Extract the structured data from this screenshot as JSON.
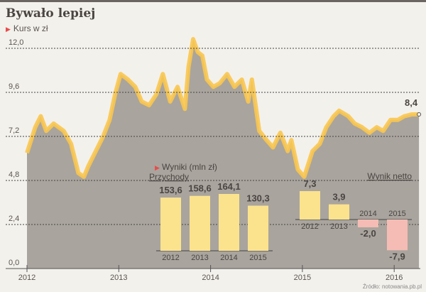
{
  "chart_data": {
    "type": "area",
    "title": "Bywało lepiej",
    "subtitle": "Kurs w zł",
    "ylabel": "Kurs w zł",
    "yticks": [
      "0,0",
      "2,4",
      "4,8",
      "7,2",
      "9,6",
      "12,0"
    ],
    "ytick_values": [
      0,
      2.4,
      4.8,
      7.2,
      9.6,
      12.0
    ],
    "xticks": [
      "2012",
      "2013",
      "2014",
      "2015",
      "2016"
    ],
    "xtick_values": [
      2012,
      2013,
      2014,
      2015,
      2016
    ],
    "ylim": [
      0,
      12.0
    ],
    "xlim": [
      2012,
      2016.3
    ],
    "grid": true,
    "last_value_label": "8,4",
    "colors": {
      "line": "#f9c74f",
      "area": "#a9a49d",
      "bar_pos": "#fbe38e",
      "bar_neg": "#f4bcb4",
      "accent": "#e84b4b"
    },
    "series": [
      {
        "name": "Kurs",
        "x": [
          2012.0,
          2012.09,
          2012.15,
          2012.21,
          2012.29,
          2012.4,
          2012.48,
          2012.56,
          2012.62,
          2012.67,
          2012.75,
          2012.83,
          2012.9,
          2012.96,
          2013.02,
          2013.1,
          2013.18,
          2013.25,
          2013.33,
          2013.41,
          2013.48,
          2013.56,
          2013.64,
          2013.72,
          2013.76,
          2013.81,
          2013.86,
          2013.91,
          2013.96,
          2014.03,
          2014.1,
          2014.18,
          2014.26,
          2014.34,
          2014.41,
          2014.45,
          2014.53,
          2014.61,
          2014.68,
          2014.76,
          2014.84,
          2014.88,
          2014.95,
          2015.02,
          2015.11,
          2015.19,
          2015.26,
          2015.34,
          2015.4,
          2015.5,
          2015.57,
          2015.65,
          2015.73,
          2015.81,
          2015.88,
          2015.96,
          2016.04,
          2016.11,
          2016.19,
          2016.27
        ],
        "y": [
          6.3,
          7.7,
          8.3,
          7.5,
          7.9,
          7.5,
          6.8,
          5.2,
          5.0,
          5.6,
          6.4,
          7.2,
          8.1,
          9.5,
          10.6,
          10.3,
          9.9,
          9.1,
          8.9,
          9.5,
          10.6,
          9.1,
          9.9,
          8.7,
          11.0,
          12.5,
          11.8,
          11.6,
          10.3,
          9.9,
          10.1,
          10.6,
          9.9,
          10.3,
          9.1,
          10.3,
          7.5,
          7.0,
          6.6,
          7.4,
          6.4,
          7.0,
          5.4,
          5.0,
          6.4,
          6.8,
          7.7,
          8.3,
          8.6,
          8.3,
          7.9,
          7.7,
          7.4,
          7.7,
          7.5,
          8.1,
          8.1,
          8.3,
          8.4,
          8.4
        ]
      }
    ],
    "inset_bars": [
      {
        "title": "Wyniki (mln zł)",
        "name": "Przychody",
        "categories": [
          "2012",
          "2013",
          "2014",
          "2015"
        ],
        "values": [
          153.6,
          158.6,
          164.1,
          130.3
        ],
        "labels": [
          "153,6",
          "158,6",
          "164,1",
          "130,3"
        ]
      },
      {
        "name": "Wynik netto",
        "categories": [
          "2012",
          "2013",
          "2014",
          "2015"
        ],
        "values": [
          7.3,
          3.9,
          -2.0,
          -7.9
        ],
        "labels": [
          "7,3",
          "3,9",
          "-2,0",
          "-7,9"
        ]
      }
    ],
    "source": "Źródło: notowania.pb.pl"
  }
}
